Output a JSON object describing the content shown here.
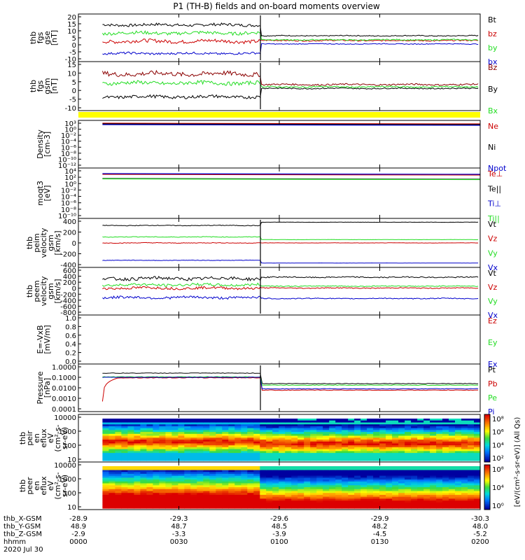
{
  "title": "P1 (TH-B) fields and on-board moments overview",
  "colors": {
    "black": "#000000",
    "red": "#cc0000",
    "green": "#22dd22",
    "blue": "#0000cc",
    "yellow": "#ffff00",
    "dark_red": "#8b0000"
  },
  "chart_data": [
    {
      "type": "line",
      "panel": "fgs_gse",
      "ylabel": [
        "thb",
        "fgs",
        "gse",
        "[nT]"
      ],
      "yticks": [
        "20",
        "15",
        "10",
        "5",
        "0",
        "-5",
        "-10"
      ],
      "ylim": [
        -15,
        20
      ],
      "series": [
        {
          "name": "Bt",
          "color": "#000000",
          "values_before": 12,
          "values_after": 4,
          "noise": 1.0
        },
        {
          "name": "bz",
          "color": "#cc0000",
          "values_before": 0,
          "values_after": 0.5,
          "noise": 1.3
        },
        {
          "name": "by",
          "color": "#22dd22",
          "values_before": 6,
          "values_after": 1,
          "noise": 1.2
        },
        {
          "name": "bx",
          "color": "#0000cc",
          "values_before": -9,
          "values_after": -2,
          "noise": 0.8
        }
      ]
    },
    {
      "type": "line",
      "panel": "fgs_gsm",
      "ylabel": [
        "thb",
        "fgs",
        "gsm",
        "[nT]"
      ],
      "yticks": [
        "15",
        "10",
        "5",
        "0",
        "-5",
        "-10"
      ],
      "ylim": [
        -15,
        17
      ],
      "series": [
        {
          "name": "Bz",
          "color": "#8b0000",
          "values_before": 9,
          "values_after": 2,
          "noise": 1.5
        },
        {
          "name": "By",
          "color": "#000000",
          "values_before": -6,
          "values_after": -0.5,
          "noise": 1.0
        },
        {
          "name": "Bx",
          "color": "#22dd22",
          "values_before": 3,
          "values_after": 0.5,
          "noise": 1.2
        }
      ]
    },
    {
      "type": "log_line",
      "panel": "density",
      "ylabel": [
        "Density",
        "[cm-3]"
      ],
      "yticks": [
        "10³",
        "10⁰",
        "10⁻²",
        "10⁻⁴",
        "10⁻⁶",
        "10⁻⁸",
        "10⁻¹⁰",
        "10⁻¹²"
      ],
      "series": [
        {
          "name": "Ne",
          "color": "#cc0000"
        },
        {
          "name": "Ni",
          "color": "#000000"
        },
        {
          "name": "Npot",
          "color": "#0000cc"
        }
      ]
    },
    {
      "type": "log_line",
      "panel": "temperature",
      "ylabel": [
        "moqt3",
        "[eV]"
      ],
      "yticks": [
        "10⁴",
        "10²",
        "10⁰",
        "10⁻²",
        "10⁻⁴",
        "10⁻⁶",
        "10⁻⁸",
        "10⁻¹⁰"
      ],
      "series": [
        {
          "name": "Te⊥",
          "color": "#cc0000"
        },
        {
          "name": "Te||",
          "color": "#000000"
        },
        {
          "name": "Ti⊥",
          "color": "#0000cc"
        },
        {
          "name": "Ti||",
          "color": "#22dd22"
        }
      ]
    },
    {
      "type": "line",
      "panel": "peim_velocity",
      "ylabel": [
        "thb",
        "peim",
        "velocity",
        "gsm",
        "[km/s]"
      ],
      "yticks": [
        "400",
        "200",
        "0",
        "-200",
        "-400"
      ],
      "ylim": [
        -450,
        450
      ],
      "series": [
        {
          "name": "Vt",
          "color": "#000000",
          "values_before": 320,
          "values_after": 380,
          "noise": 6
        },
        {
          "name": "Vz",
          "color": "#cc0000",
          "values_before": 0,
          "values_after": 0,
          "noise": 6
        },
        {
          "name": "Vy",
          "color": "#22dd22",
          "values_before": 110,
          "values_after": 60,
          "noise": 6
        },
        {
          "name": "Vx",
          "color": "#0000cc",
          "values_before": -320,
          "values_after": -370,
          "noise": 4
        }
      ]
    },
    {
      "type": "line",
      "panel": "peem_velocity",
      "ylabel": [
        "thb",
        "peem",
        "velocity",
        "gsm",
        "[km/s]"
      ],
      "yticks": [
        "600",
        "400",
        "200",
        "0",
        "-200",
        "-400",
        "-600",
        "-800"
      ],
      "ylim": [
        -850,
        650
      ],
      "series": [
        {
          "name": "Vt",
          "color": "#000000",
          "values_before": 300,
          "values_after": 340,
          "noise": 50
        },
        {
          "name": "Vz",
          "color": "#cc0000",
          "values_before": 0,
          "values_after": 0,
          "noise": 40
        },
        {
          "name": "Vy",
          "color": "#22dd22",
          "values_before": 100,
          "values_after": 60,
          "noise": 40
        },
        {
          "name": "Vx",
          "color": "#0000cc",
          "values_before": -300,
          "values_after": -330,
          "noise": 40
        }
      ]
    },
    {
      "type": "line",
      "panel": "efield",
      "ylabel": [
        "E=-VxB",
        "[mV/m]"
      ],
      "yticks": [
        "1.0",
        "0.8",
        "0.6",
        "0.4",
        "0.2",
        "0.0"
      ],
      "ylim": [
        0,
        1
      ],
      "series": [
        {
          "name": "Ez",
          "color": "#cc0000"
        },
        {
          "name": "Ey",
          "color": "#22dd22"
        },
        {
          "name": "Ex",
          "color": "#0000cc"
        }
      ]
    },
    {
      "type": "log_line",
      "panel": "pressure",
      "ylabel": [
        "Pressure",
        "[nPa]"
      ],
      "yticks": [
        "1.0000",
        "0.1000",
        "0.0100",
        "0.0010",
        "0.0001"
      ],
      "ylim": [
        0.0001,
        1.0
      ],
      "series": [
        {
          "name": "Pt",
          "color": "#000000",
          "values_before": 0.25,
          "values_after": 0.025
        },
        {
          "name": "Pb",
          "color": "#cc0000",
          "values_before": 0.09,
          "values_after": 0.006
        },
        {
          "name": "Pe",
          "color": "#22dd22",
          "values_before": 0.11,
          "values_after": 0.018
        },
        {
          "name": "Pi",
          "color": "#0000cc",
          "values_before": 0.1,
          "values_after": 0.008
        }
      ]
    },
    {
      "type": "heatmap",
      "panel": "peir_eflux",
      "ylabel": [
        "thb",
        "peir",
        "en",
        "eflux",
        "eV",
        "(cm²-s-",
        "sr-eV)"
      ],
      "yticks": [
        "10000",
        "1000",
        "100",
        "10"
      ]
    },
    {
      "type": "heatmap",
      "panel": "peer_eflux",
      "ylabel": [
        "thb",
        "peer",
        "en",
        "eflux",
        "eV",
        "(cm²-s-",
        "sr-eV)"
      ],
      "yticks": [
        "10000",
        "1000",
        "100",
        "10"
      ]
    }
  ],
  "colorbar": {
    "label": "[eV/(cm²-s-sr-eV)] (All Qs)",
    "upper_ticks": [
      "10⁸",
      "10⁶",
      "10⁴",
      "10²"
    ],
    "lower_ticks": [
      "10⁸",
      "10⁴",
      "10⁰"
    ]
  },
  "bottom_axis": {
    "rows": [
      {
        "label": "thb_X-GSM",
        "values": [
          "-28.9",
          "-29.3",
          "-29.6",
          "-29.9",
          "-30.3"
        ]
      },
      {
        "label": "thb_Y-GSM",
        "values": [
          "48.9",
          "48.7",
          "48.5",
          "48.2",
          "48.0"
        ]
      },
      {
        "label": "thb_Z-GSM",
        "values": [
          "-2.9",
          "-3.3",
          "-3.9",
          "-4.5",
          "-5.2"
        ]
      },
      {
        "label": "hhmm",
        "values": [
          "0000",
          "0030",
          "0100",
          "0130",
          "0200"
        ]
      }
    ],
    "date": "2020 Jul 30"
  }
}
